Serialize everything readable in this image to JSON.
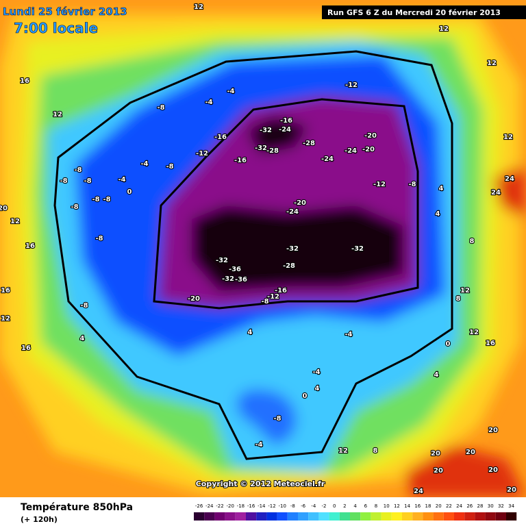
{
  "header": {
    "valid_date": "Lundi 25 février 2013",
    "local_time": "7:00 locale",
    "run": "Run GFS 6 Z du Mercredi 20 février 2013"
  },
  "copyright": "Copyright © 2012 Meteociel.fr",
  "footer": {
    "title": "Température 850hPa",
    "lead": "(+ 120h)"
  },
  "scale": {
    "values": [
      -26,
      -24,
      -22,
      -20,
      -18,
      -16,
      -14,
      -12,
      -10,
      -8,
      -6,
      -4,
      -2,
      0,
      2,
      4,
      6,
      8,
      10,
      12,
      14,
      16,
      18,
      20,
      22,
      24,
      26,
      28,
      30,
      32,
      34
    ],
    "colors": [
      "#2a0030",
      "#4a0050",
      "#700070",
      "#8a108a",
      "#a020a0",
      "#5010a0",
      "#2020c0",
      "#0030e0",
      "#1050ff",
      "#2080ff",
      "#30a0ff",
      "#40c0ff",
      "#50e0ff",
      "#40f0d0",
      "#40e090",
      "#60e060",
      "#90f040",
      "#c0f030",
      "#e8f020",
      "#fff020",
      "#ffd020",
      "#ffb020",
      "#ff9010",
      "#ff7010",
      "#ff5010",
      "#f03010",
      "#d02010",
      "#b01010",
      "#900810",
      "#700010",
      "#300000"
    ]
  },
  "contour_labels": [
    16,
    12,
    12,
    -8,
    -4,
    -4,
    -16,
    -12,
    -16,
    -8,
    -4,
    -32,
    -24,
    -16,
    -32,
    -28,
    -28,
    -24,
    -24,
    -20,
    -20,
    -12,
    -12,
    -8,
    -20,
    -24,
    -32,
    -32,
    -32,
    -36,
    -28,
    -32,
    -36,
    -20,
    -12,
    -16,
    -8,
    -8,
    -8,
    -8,
    -8,
    -8,
    -8,
    -8,
    -8,
    0,
    -4,
    4,
    16,
    12,
    16,
    20,
    16,
    12,
    4,
    -4,
    -4,
    4,
    0,
    -8,
    -4,
    8,
    12,
    4,
    0,
    8,
    12,
    12,
    16,
    24,
    24,
    20,
    20,
    20,
    20,
    24,
    20,
    20,
    12,
    12,
    12,
    4,
    4,
    8
  ]
}
